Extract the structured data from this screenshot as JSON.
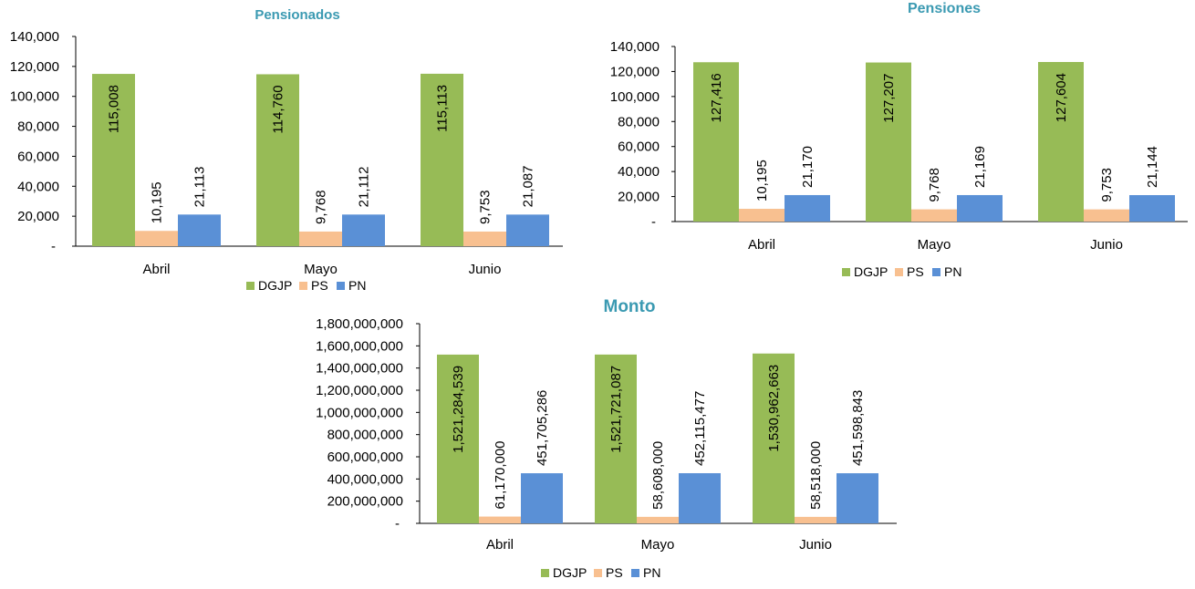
{
  "colors": {
    "DGJP": "#97BB56",
    "PS": "#F8C090",
    "PN": "#5A90D6",
    "title": "#3B9AB2"
  },
  "chart_data": [
    {
      "id": "pensionados",
      "type": "bar",
      "title": "Pensionados",
      "categories": [
        "Abril",
        "Mayo",
        "Junio"
      ],
      "series": [
        {
          "name": "DGJP",
          "values": [
            115008,
            114760,
            115113
          ],
          "labels": [
            "115,008",
            "114,760",
            "115,113"
          ]
        },
        {
          "name": "PS",
          "values": [
            10195,
            9768,
            9753
          ],
          "labels": [
            "10,195",
            "9,768",
            "9,753"
          ]
        },
        {
          "name": "PN",
          "values": [
            21113,
            21112,
            21087
          ],
          "labels": [
            "21,113",
            "21,112",
            "21,087"
          ]
        }
      ],
      "ylim": [
        0,
        140000
      ],
      "yticks": [
        "-",
        "20,000",
        "40,000",
        "60,000",
        "80,000",
        "100,000",
        "120,000",
        "140,000"
      ],
      "legend": "bottom",
      "grid": false
    },
    {
      "id": "pensiones",
      "type": "bar",
      "title": "Pensiones",
      "categories": [
        "Abril",
        "Mayo",
        "Junio"
      ],
      "series": [
        {
          "name": "DGJP",
          "values": [
            127416,
            127207,
            127604
          ],
          "labels": [
            "127,416",
            "127,207",
            "127,604"
          ]
        },
        {
          "name": "PS",
          "values": [
            10195,
            9768,
            9753
          ],
          "labels": [
            "10,195",
            "9,768",
            "9,753"
          ]
        },
        {
          "name": "PN",
          "values": [
            21170,
            21169,
            21144
          ],
          "labels": [
            "21,170",
            "21,169",
            "21,144"
          ]
        }
      ],
      "ylim": [
        0,
        140000
      ],
      "yticks": [
        "-",
        "20,000",
        "40,000",
        "60,000",
        "80,000",
        "100,000",
        "120,000",
        "140,000"
      ],
      "legend": "bottom",
      "grid": false
    },
    {
      "id": "monto",
      "type": "bar",
      "title": "Monto",
      "categories": [
        "Abril",
        "Mayo",
        "Junio"
      ],
      "series": [
        {
          "name": "DGJP",
          "values": [
            1521284539,
            1521721087,
            1530962663
          ],
          "labels": [
            "1,521,284,539",
            "1,521,721,087",
            "1,530,962,663"
          ]
        },
        {
          "name": "PS",
          "values": [
            61170000,
            58608000,
            58518000
          ],
          "labels": [
            "61,170,000",
            "58,608,000",
            "58,518,000"
          ]
        },
        {
          "name": "PN",
          "values": [
            451705286,
            452115477,
            451598843
          ],
          "labels": [
            "451,705,286",
            "452,115,477",
            "451,598,843"
          ]
        }
      ],
      "ylim": [
        0,
        1800000000
      ],
      "yticks": [
        "-",
        "200,000,000",
        "400,000,000",
        "600,000,000",
        "800,000,000",
        "1,000,000,000",
        "1,200,000,000",
        "1,400,000,000",
        "1,600,000,000",
        "1,800,000,000"
      ],
      "legend": "bottom",
      "grid": false
    }
  ]
}
